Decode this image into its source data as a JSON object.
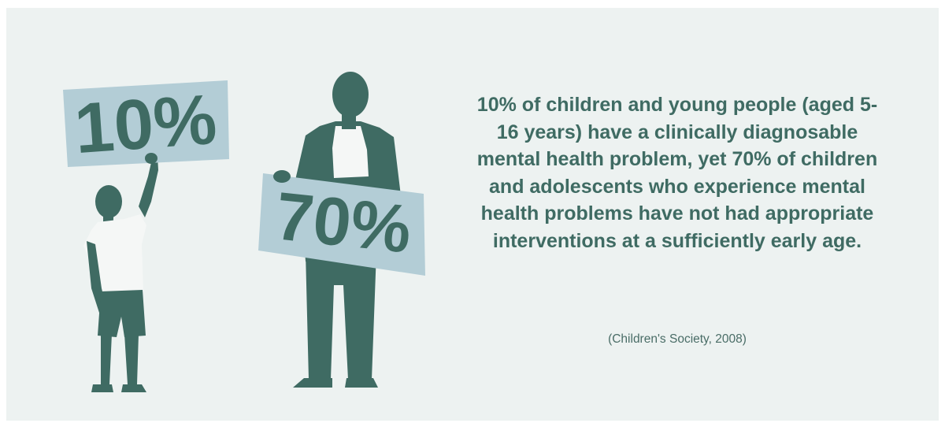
{
  "infographic": {
    "child_sign": "10%",
    "adult_sign": "70%",
    "statement": "10% of children and young people (aged 5-16 years) have a clinically diagnosable mental health problem, yet 70% of children and adolescents who experience mental health problems have not had appropriate interventions at a sufficiently early age.",
    "citation": "(Children's Society, 2008)"
  },
  "colors": {
    "background": "#edf2f1",
    "figure": "#3f6b63",
    "sign": "#b3cdd6",
    "shirt": "#f5f7f6"
  }
}
